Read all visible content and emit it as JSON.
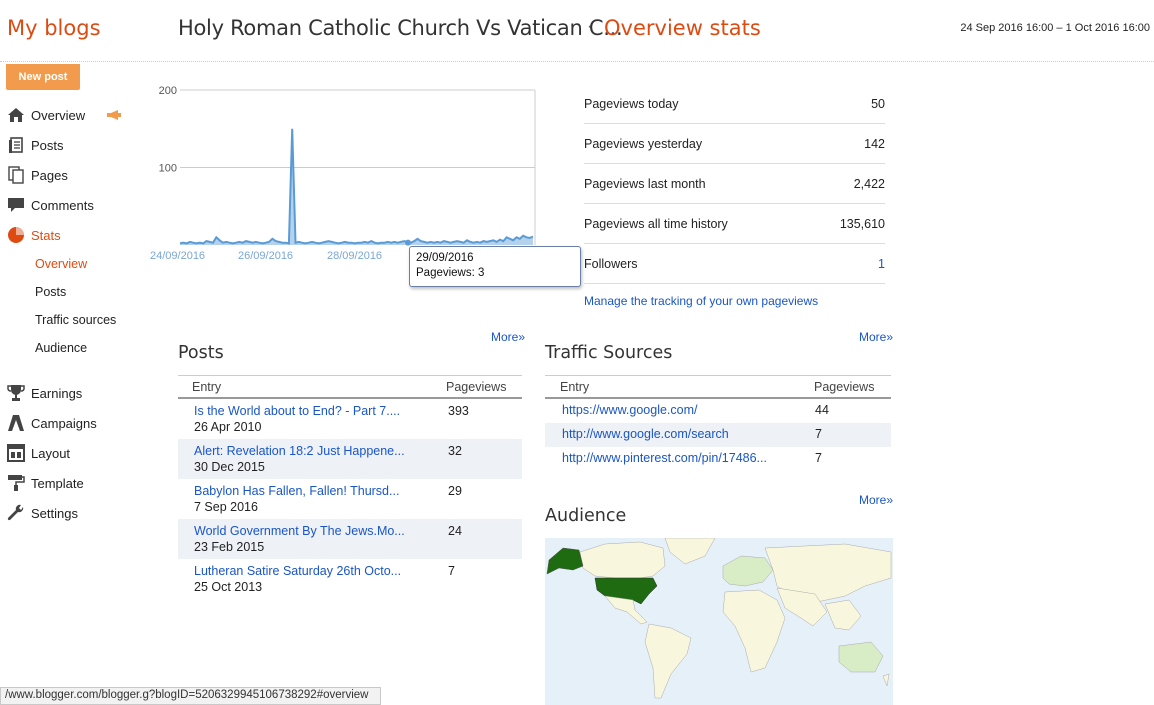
{
  "header": {
    "my_blogs": "My blogs",
    "blog_title": "Holy Roman Catholic Church Vs Vatican C...",
    "separator": "·",
    "page_title": "Overview stats",
    "date_range": "24 Sep 2016 16:00 – 1 Oct 2016 16:00"
  },
  "sidebar": {
    "new_post": "New post",
    "items": [
      {
        "label": "Overview",
        "icon": "home-icon"
      },
      {
        "label": "Posts",
        "icon": "posts-icon"
      },
      {
        "label": "Pages",
        "icon": "pages-icon"
      },
      {
        "label": "Comments",
        "icon": "comment-icon"
      },
      {
        "label": "Stats",
        "icon": "stats-pie-icon"
      },
      {
        "label": "Earnings",
        "icon": "trophy-icon"
      },
      {
        "label": "Campaigns",
        "icon": "campaigns-icon"
      },
      {
        "label": "Layout",
        "icon": "layout-icon"
      },
      {
        "label": "Template",
        "icon": "paint-roller-icon"
      },
      {
        "label": "Settings",
        "icon": "wrench-icon"
      }
    ],
    "stats_sub": [
      "Overview",
      "Posts",
      "Traffic sources",
      "Audience"
    ]
  },
  "chart_data": {
    "type": "area",
    "x_ticks": [
      "24/09/2016",
      "26/09/2016",
      "28/09/2016"
    ],
    "y_ticks": [
      "200",
      "100"
    ],
    "ylim": [
      0,
      200
    ],
    "series": [
      {
        "values": [
          2,
          3,
          2,
          4,
          3,
          2,
          3,
          2,
          5,
          4,
          3,
          10,
          6,
          3,
          4,
          3,
          2,
          3,
          4,
          3,
          5,
          4,
          3,
          4,
          3,
          2,
          3,
          4,
          8,
          5,
          4,
          3,
          3,
          2,
          150,
          3,
          4,
          3,
          2,
          3,
          4,
          3,
          2,
          3,
          4,
          5,
          4,
          3,
          2,
          3,
          4,
          3,
          3,
          2,
          3,
          3,
          4,
          3,
          5,
          3,
          2,
          3,
          3,
          4,
          3,
          4,
          3,
          4,
          5,
          4,
          3,
          5,
          8,
          5,
          4,
          3,
          4,
          3,
          4,
          3,
          5,
          4,
          3,
          4,
          5,
          4,
          3,
          6,
          4,
          3,
          4,
          3,
          5,
          4,
          5,
          6,
          4,
          7,
          5,
          10,
          8,
          6,
          10,
          8,
          12,
          10,
          9,
          11
        ]
      }
    ],
    "color": "#5b9bd5"
  },
  "tooltip": {
    "date": "29/09/2016",
    "value": "Pageviews: 3"
  },
  "stats": [
    {
      "label": "Pageviews today",
      "value": "50"
    },
    {
      "label": "Pageviews yesterday",
      "value": "142"
    },
    {
      "label": "Pageviews last month",
      "value": "2,422"
    },
    {
      "label": "Pageviews all time history",
      "value": "135,610"
    },
    {
      "label": "Followers",
      "value": "1"
    }
  ],
  "manage_link": "Manage the tracking of your own pageviews",
  "more": "More»",
  "posts": {
    "title": "Posts",
    "col_entry": "Entry",
    "col_pageviews": "Pageviews",
    "rows": [
      {
        "title": "Is the World about to End? - Part 7....",
        "date": "26 Apr 2010",
        "pv": "393"
      },
      {
        "title": "Alert: Revelation 18:2 Just Happene...",
        "date": "30 Dec 2015",
        "pv": "32"
      },
      {
        "title": "Babylon Has Fallen, Fallen! Thursd...",
        "date": "7 Sep 2016",
        "pv": "29"
      },
      {
        "title": "World Government By The Jews.Mo...",
        "date": "23 Feb 2015",
        "pv": "24"
      },
      {
        "title": "Lutheran Satire Saturday 26th Octo...",
        "date": "25 Oct 2013",
        "pv": "7"
      }
    ]
  },
  "traffic": {
    "title": "Traffic Sources",
    "col_entry": "Entry",
    "col_pageviews": "Pageviews",
    "rows": [
      {
        "url": "https://www.google.com/",
        "pv": "44"
      },
      {
        "url": "http://www.google.com/search",
        "pv": "7"
      },
      {
        "url": "http://www.pinterest.com/pin/17486...",
        "pv": "7"
      }
    ]
  },
  "audience": {
    "title": "Audience"
  },
  "statusbar": "/www.blogger.com/blogger.g?blogID=5206329945106738292#overview",
  "colors": {
    "accent": "#dd4b13",
    "link": "#1a56c5",
    "button": "#f39b4c"
  }
}
